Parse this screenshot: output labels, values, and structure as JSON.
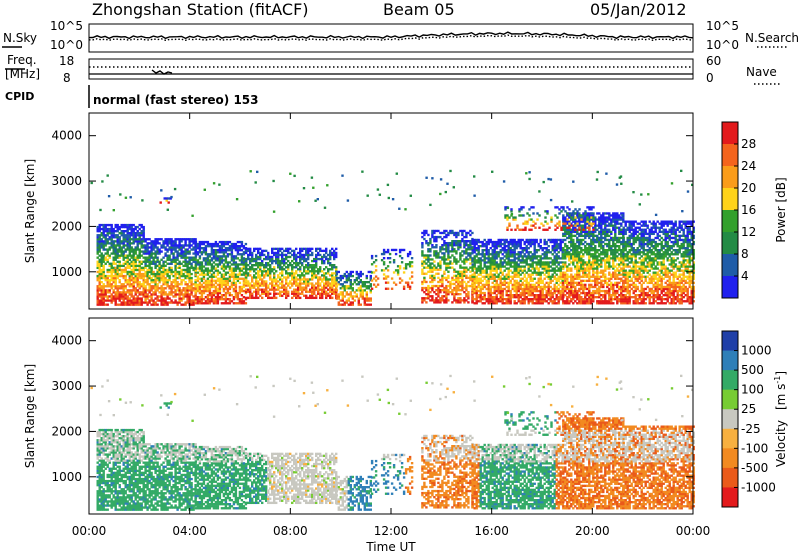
{
  "header": {
    "station": "Zhongshan Station (fitACF)",
    "beam": "Beam 05",
    "date": "05/Jan/2012"
  },
  "top_panels": {
    "nsky_label": "N.Sky",
    "nsearch_label": "N.Search",
    "freq_label_1": "Freq.",
    "freq_label_2": "[MHz]",
    "nave_label": "Nave",
    "cpid_label": "CPID",
    "cpid_text": "normal (fast stereo) 153",
    "noise_left_ticks": [
      "10^5",
      "10^0"
    ],
    "noise_right_ticks": [
      "10^5",
      "10^0"
    ],
    "freq_left_ticks": [
      "18",
      "8"
    ],
    "nave_right_ticks": [
      "60",
      "0"
    ]
  },
  "chart_data": [
    {
      "type": "heatmap",
      "panel": "power",
      "ylabel": "Slant Range [km]",
      "xlabel": "",
      "ylim": [
        180,
        4500
      ],
      "xlim": [
        0,
        24
      ],
      "y_ticks": [
        "4000",
        "3000",
        "2000",
        "1000"
      ],
      "colorbar_title": "Power [dB]",
      "colorbar_labels": [
        "28",
        "24",
        "20",
        "16",
        "12",
        "8",
        "4"
      ],
      "colorbar_colors": [
        "#e31a1c",
        "#f4641d",
        "#fa9c1a",
        "#ffd31a",
        "#33a02c",
        "#238b45",
        "#1f5ca8",
        "#2020ee"
      ]
    },
    {
      "type": "heatmap",
      "panel": "velocity",
      "ylabel": "Slant Range [km]",
      "xlabel": "Time UT",
      "ylim": [
        180,
        4500
      ],
      "xlim": [
        0,
        24
      ],
      "y_ticks": [
        "4000",
        "3000",
        "2000",
        "1000"
      ],
      "x_ticks": [
        "00:00",
        "04:00",
        "08:00",
        "12:00",
        "16:00",
        "20:00",
        "00:00"
      ],
      "colorbar_title_main": "Velocity",
      "colorbar_title_units": "[m s",
      "colorbar_title_exp": "-1",
      "colorbar_title_close": "]",
      "colorbar_labels": [
        "1000",
        "500",
        "100",
        "25",
        "-25",
        "-100",
        "-500",
        "-1000"
      ],
      "colorbar_colors": [
        "#1f3fa8",
        "#2e7fb8",
        "#33aa66",
        "#77cc33",
        "#c8c8c0",
        "#f7b040",
        "#f28a20",
        "#ea5a1a",
        "#e31a1c"
      ]
    }
  ]
}
